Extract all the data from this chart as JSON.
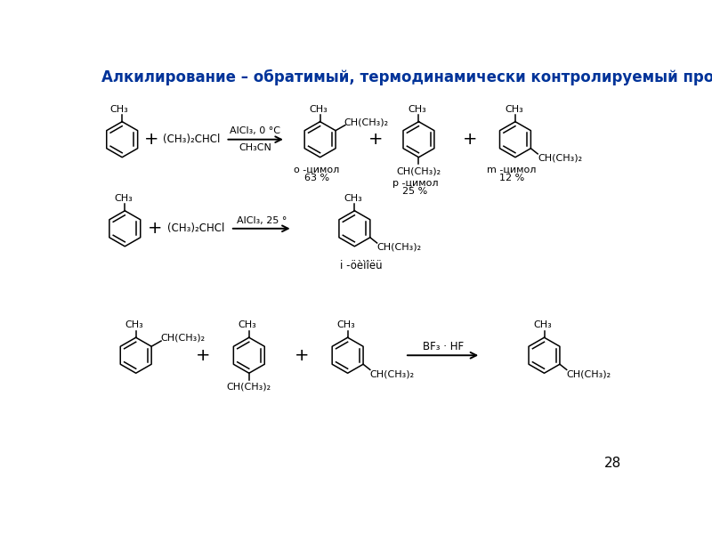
{
  "title": "Алкилирование – обратимый, термодинамически контролируемый процесс.",
  "title_color": "#003399",
  "title_fontsize": 12,
  "bg_color": "#ffffff",
  "page_number": "28",
  "r1_condition_top": "AlCl₃, 0 °C",
  "r1_condition_bot": "CH₃CN",
  "r1_reactant2": "(CH₃)₂CHCl",
  "r1_p1_name": "î -цимол",
  "r1_p1_pct": "63 %",
  "r1_p2_name": "ï -цимол",
  "r1_p2_pct": "25 %",
  "r1_p2_sub": "CH(CH₃)₂",
  "r1_p3_name": "ì -цимол",
  "r1_p3_pct": "12 %",
  "r2_condition": "AlCl₃, 25 °",
  "r2_reactant2": "(CH₃)₂CHCl",
  "r2_product_name": "ì -öèìîëü",
  "r3_condition": "BF₃ · HF",
  "CH3": "CH₃",
  "CHiPr": "CH(CH₃)₂"
}
